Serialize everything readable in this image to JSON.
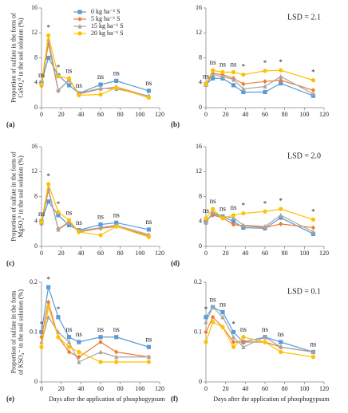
{
  "chart_data": [
    {
      "type": "line",
      "panel_label": "(a)",
      "ylabel": [
        "Proportion of sulfate in the form of",
        "CaSO₄⁰ in the soil solution (%)"
      ],
      "legend": "top",
      "x": [
        0,
        7,
        17,
        28,
        38,
        60,
        76,
        109
      ],
      "xlim": [
        0,
        120
      ],
      "xticks": [
        0,
        20,
        40,
        60,
        80,
        100,
        120
      ],
      "ylim": [
        0,
        16
      ],
      "yticks": [
        0,
        4,
        8,
        12,
        16
      ],
      "series": [
        {
          "name": "0 kg ha⁻¹ S",
          "color": "#5b9bd5",
          "marker": "square",
          "values": [
            4.0,
            8.0,
            5.2,
            3.6,
            2.3,
            3.7,
            4.3,
            2.7
          ]
        },
        {
          "name": "5 kg ha⁻¹ S",
          "color": "#ed7d31",
          "marker": "diamond",
          "values": [
            3.5,
            10.3,
            2.7,
            4.5,
            2.2,
            3.0,
            3.3,
            1.8
          ]
        },
        {
          "name": "15 kg ha⁻¹ S",
          "color": "#a5a5a5",
          "marker": "triangle",
          "values": [
            3.8,
            11.0,
            2.8,
            4.4,
            2.3,
            3.1,
            3.0,
            1.9
          ]
        },
        {
          "name": "20 kg ha⁻¹ S",
          "color": "#ffc000",
          "marker": "circle",
          "values": [
            3.7,
            11.6,
            5.0,
            4.7,
            2.0,
            2.1,
            3.2,
            1.6
          ]
        }
      ],
      "annotations": [
        "ns",
        "*",
        "*",
        "ns",
        "ns",
        "ns",
        "ns",
        "ns"
      ]
    },
    {
      "type": "line",
      "panel_label": "(b)",
      "lsd_label": "LSD = 2.1",
      "x": [
        0,
        7,
        17,
        28,
        38,
        60,
        76,
        109
      ],
      "xlim": [
        0,
        120
      ],
      "xticks": [
        0,
        20,
        40,
        60,
        80,
        100,
        120
      ],
      "ylim": [
        0,
        16
      ],
      "yticks": [
        0,
        4,
        8,
        12,
        16
      ],
      "series": [
        {
          "color": "#5b9bd5",
          "marker": "square",
          "values": [
            3.7,
            4.7,
            4.7,
            3.6,
            2.5,
            2.5,
            3.9,
            1.9
          ]
        },
        {
          "color": "#ed7d31",
          "marker": "diamond",
          "values": [
            3.7,
            5.5,
            5.3,
            4.7,
            3.8,
            4.2,
            4.4,
            2.8
          ]
        },
        {
          "color": "#a5a5a5",
          "marker": "triangle",
          "values": [
            3.7,
            5.3,
            5.0,
            4.5,
            3.0,
            3.4,
            5.0,
            2.2
          ]
        },
        {
          "color": "#ffc000",
          "marker": "circle",
          "values": [
            3.8,
            6.0,
            5.7,
            5.7,
            5.3,
            5.9,
            6.0,
            4.4
          ]
        }
      ],
      "annotations": [
        "ns",
        "ns",
        "ns",
        "ns",
        "*",
        "*",
        "*",
        "*"
      ]
    },
    {
      "type": "line",
      "panel_label": "(c)",
      "ylabel": [
        "Proportion of sulfate in the form of",
        "MgSO₄⁰ in the soil solution (%)"
      ],
      "x": [
        0,
        7,
        17,
        28,
        38,
        60,
        76,
        109
      ],
      "xlim": [
        0,
        120
      ],
      "xticks": [
        0,
        20,
        40,
        60,
        80,
        100,
        120
      ],
      "ylim": [
        0,
        16
      ],
      "yticks": [
        0,
        4,
        8,
        12,
        16
      ],
      "series": [
        {
          "color": "#5b9bd5",
          "marker": "square",
          "values": [
            4.0,
            7.2,
            5.0,
            3.4,
            2.6,
            3.5,
            3.8,
            2.7
          ]
        },
        {
          "color": "#ed7d31",
          "marker": "diamond",
          "values": [
            3.6,
            9.0,
            2.8,
            3.9,
            2.3,
            2.9,
            3.2,
            1.7
          ]
        },
        {
          "color": "#a5a5a5",
          "marker": "triangle",
          "values": [
            3.8,
            9.3,
            2.7,
            3.8,
            2.5,
            3.0,
            3.4,
            1.9
          ]
        },
        {
          "color": "#ffc000",
          "marker": "circle",
          "values": [
            3.9,
            10.0,
            5.5,
            4.2,
            2.3,
            1.8,
            3.2,
            1.5
          ]
        }
      ],
      "annotations": [
        "ns",
        "*",
        "*",
        "ns",
        "ns",
        "ns",
        "ns",
        "ns"
      ]
    },
    {
      "type": "line",
      "panel_label": "(d)",
      "lsd_label": "LSD = 2.0",
      "x": [
        0,
        7,
        17,
        28,
        38,
        60,
        76,
        109
      ],
      "xlim": [
        0,
        120
      ],
      "xticks": [
        0,
        20,
        40,
        60,
        80,
        100,
        120
      ],
      "ylim": [
        0,
        16
      ],
      "yticks": [
        0,
        4,
        8,
        12,
        16
      ],
      "series": [
        {
          "color": "#5b9bd5",
          "marker": "square",
          "values": [
            4.0,
            5.2,
            4.8,
            4.0,
            3.0,
            2.9,
            4.6,
            2.0
          ]
        },
        {
          "color": "#ed7d31",
          "marker": "diamond",
          "values": [
            4.2,
            5.0,
            4.6,
            3.5,
            3.3,
            3.0,
            3.6,
            3.0
          ]
        },
        {
          "color": "#a5a5a5",
          "marker": "triangle",
          "values": [
            3.8,
            5.5,
            4.8,
            4.6,
            3.4,
            3.2,
            5.0,
            2.3
          ]
        },
        {
          "color": "#ffc000",
          "marker": "circle",
          "values": [
            4.5,
            6.0,
            4.5,
            5.0,
            5.3,
            5.6,
            6.0,
            4.3
          ]
        }
      ],
      "annotations": [
        "ns",
        "ns",
        "ns",
        "ns",
        "*",
        "*",
        "*",
        "*"
      ]
    },
    {
      "type": "line",
      "panel_label": "(e)",
      "ylabel": [
        "Proportion of sulfate in the form",
        "of KSO₄⁻ in the soil solution (%)"
      ],
      "xlabel": "Days after the application of phosphogypsum",
      "x": [
        0,
        7,
        17,
        28,
        38,
        60,
        76,
        109
      ],
      "xlim": [
        0,
        120
      ],
      "xticks": [
        0,
        20,
        40,
        60,
        80,
        100,
        120
      ],
      "ylim": [
        0,
        0.2
      ],
      "yticks": [
        0,
        0.1,
        0.2
      ],
      "series": [
        {
          "color": "#5b9bd5",
          "marker": "square",
          "values": [
            0.1,
            0.19,
            0.13,
            0.09,
            0.08,
            0.09,
            0.09,
            0.07
          ]
        },
        {
          "color": "#ed7d31",
          "marker": "diamond",
          "values": [
            0.09,
            0.16,
            0.09,
            0.06,
            0.05,
            0.08,
            0.06,
            0.05
          ]
        },
        {
          "color": "#a5a5a5",
          "marker": "triangle",
          "values": [
            0.08,
            0.13,
            0.1,
            0.08,
            0.04,
            0.06,
            0.05,
            0.05
          ]
        },
        {
          "color": "#ffc000",
          "marker": "circle",
          "values": [
            0.07,
            0.15,
            0.09,
            0.07,
            0.06,
            0.04,
            0.04,
            0.04
          ]
        }
      ],
      "annotations": [
        "*",
        "*",
        "*",
        "ns",
        "ns",
        "ns",
        "ns",
        "ns"
      ]
    },
    {
      "type": "line",
      "panel_label": "(f)",
      "lsd_label": "LSD = 0.1",
      "xlabel": "Days after the application of phosphogypsum",
      "x": [
        0,
        7,
        17,
        28,
        38,
        60,
        76,
        109
      ],
      "xlim": [
        0,
        120
      ],
      "xticks": [
        0,
        20,
        40,
        60,
        80,
        100,
        120
      ],
      "ylim": [
        0,
        0.2
      ],
      "yticks": [
        0,
        0.1,
        0.2
      ],
      "series": [
        {
          "color": "#5b9bd5",
          "marker": "square",
          "values": [
            0.13,
            0.15,
            0.14,
            0.1,
            0.08,
            0.09,
            0.08,
            0.06
          ]
        },
        {
          "color": "#ed7d31",
          "marker": "diamond",
          "values": [
            0.1,
            0.13,
            0.11,
            0.08,
            0.08,
            0.08,
            0.07,
            0.06
          ]
        },
        {
          "color": "#a5a5a5",
          "marker": "triangle",
          "values": [
            0.12,
            0.15,
            0.13,
            0.09,
            0.07,
            0.09,
            0.07,
            0.06
          ]
        },
        {
          "color": "#ffc000",
          "marker": "circle",
          "values": [
            0.08,
            0.12,
            0.11,
            0.07,
            0.09,
            0.08,
            0.06,
            0.05
          ]
        }
      ],
      "annotations": [
        "*",
        "ns",
        "ns",
        "*",
        "ns",
        "ns",
        "ns",
        "ns"
      ]
    }
  ]
}
